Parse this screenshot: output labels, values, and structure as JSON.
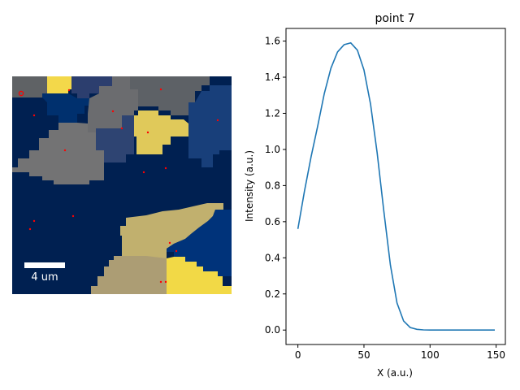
{
  "chart_data": [
    {
      "type": "heatmap",
      "content": "grain map",
      "colormap": "cividis",
      "scale_bar": {
        "label": "4 um"
      },
      "grid": false,
      "points": [
        [
          26,
          115
        ],
        [
          85,
          111
        ],
        [
          198,
          110
        ],
        [
          139,
          137
        ],
        [
          42,
          142
        ],
        [
          268,
          148
        ],
        [
          150,
          158
        ],
        [
          182,
          163
        ],
        [
          80,
          185
        ],
        [
          204,
          207
        ],
        [
          177,
          212
        ],
        [
          90,
          266
        ],
        [
          42,
          272
        ],
        [
          37,
          282
        ],
        [
          209,
          299
        ],
        [
          217,
          309
        ],
        [
          198,
          347
        ],
        [
          204,
          347
        ]
      ],
      "selected_point_index": 0
    },
    {
      "type": "line",
      "title": "point 7",
      "xlabel": "X (a.u.)",
      "ylabel": "Intensity (a.u.)",
      "xlim": [
        -9,
        157
      ],
      "ylim": [
        -0.08,
        1.67
      ],
      "xticks": [
        0,
        50,
        100,
        150
      ],
      "yticks": [
        0.0,
        0.2,
        0.4,
        0.6,
        0.8,
        1.0,
        1.2,
        1.4,
        1.6
      ],
      "grid": false,
      "line_color": "#1f77b4",
      "series": [
        {
          "x": [
            0,
            5,
            10,
            15,
            20,
            25,
            30,
            35,
            40,
            45,
            50,
            55,
            60,
            65,
            70,
            75,
            80,
            85,
            90,
            95,
            100,
            105,
            110,
            115,
            120,
            125,
            130,
            135,
            140,
            145,
            149
          ],
          "values": [
            0.56,
            0.77,
            0.96,
            1.13,
            1.31,
            1.45,
            1.54,
            1.58,
            1.59,
            1.55,
            1.44,
            1.25,
            0.98,
            0.66,
            0.36,
            0.15,
            0.05,
            0.014,
            0.004,
            0.001,
            0.0,
            0.0,
            0.0,
            0.0,
            0.0,
            0.0,
            0.0,
            0.0,
            0.0,
            0.0,
            0.0
          ]
        }
      ]
    }
  ]
}
